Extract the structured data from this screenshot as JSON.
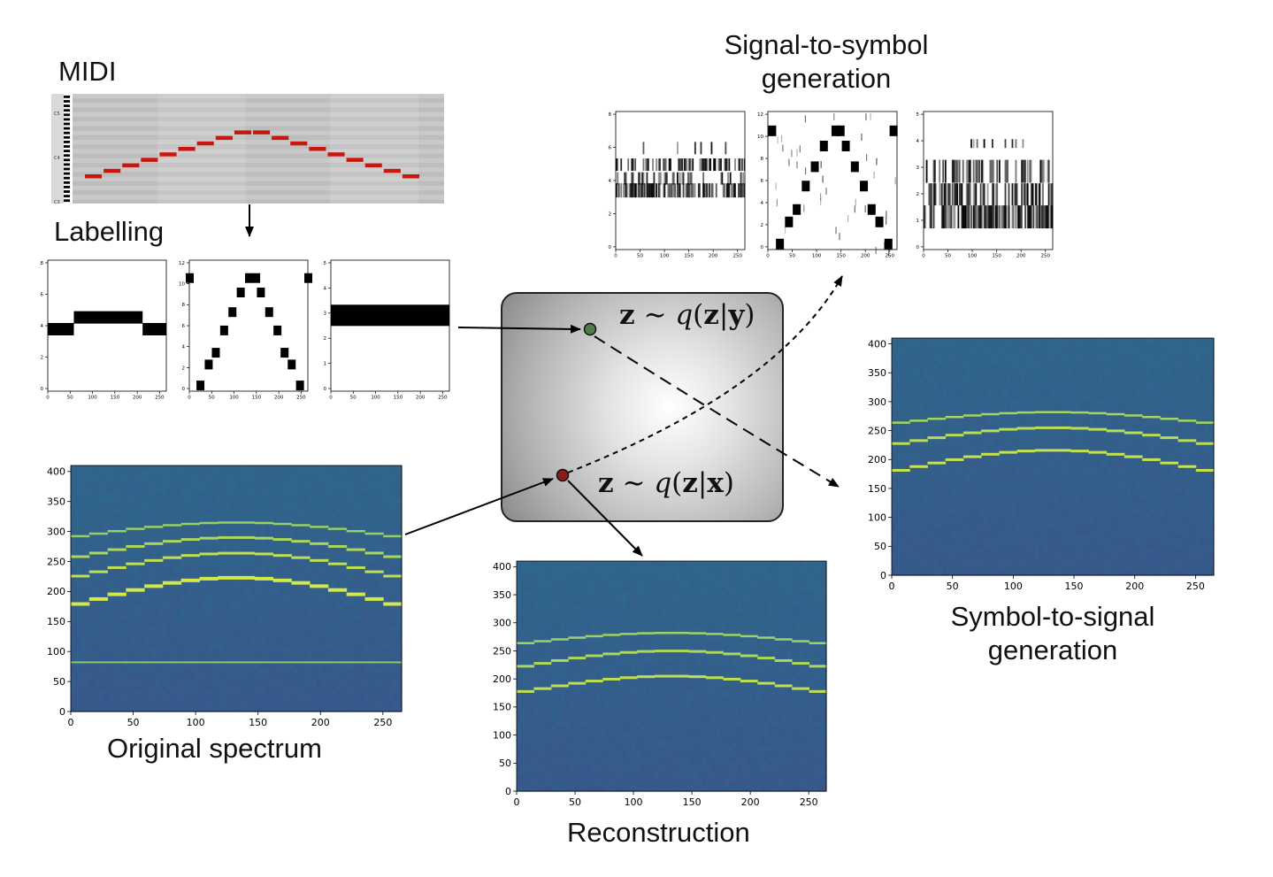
{
  "labels": {
    "midi": "MIDI",
    "labelling": "Labelling",
    "signal_to_symbol_line1": "Signal-to-symbol",
    "signal_to_symbol_line2": "generation",
    "original": "Original spectrum",
    "reconstruction": "Reconstruction",
    "symbol_to_signal_line1": "Symbol-to-signal",
    "symbol_to_signal_line2": "generation"
  },
  "latent": {
    "formula_y": {
      "z1": "z",
      "op": "∼",
      "q": "q",
      "open": "(",
      "z2": "z",
      "bar": "|",
      "v": "y",
      "close": ")"
    },
    "formula_x": {
      "z1": "z",
      "op": "∼",
      "q": "q",
      "open": "(",
      "z2": "z",
      "bar": "|",
      "v": "x",
      "close": ")"
    },
    "colors": {
      "symbol_point": "#4f7d46",
      "signal_point": "#8b1a1a"
    }
  },
  "midi_roll": {
    "note_color": "#c8170f",
    "key_labels": [
      "C5",
      "C4",
      "C3"
    ],
    "note_levels": [
      0,
      1,
      2,
      3,
      4,
      5,
      6,
      7,
      8,
      8,
      7,
      6,
      5,
      4,
      3,
      2,
      1,
      0
    ]
  },
  "spectro_axes": {
    "x_ticks": [
      "0",
      "50",
      "100",
      "150",
      "200",
      "250"
    ],
    "y_ticks": [
      "0",
      "50",
      "100",
      "150",
      "200",
      "250",
      "300",
      "350",
      "400"
    ]
  },
  "label_plots": {
    "x_ticks": [
      "0",
      "50",
      "100",
      "150",
      "200",
      "250"
    ],
    "plot1_y_ticks": [
      "0",
      "2",
      "4",
      "6",
      "8"
    ],
    "plot2_y_ticks": [
      "0",
      "2",
      "4",
      "6",
      "8",
      "10",
      "12"
    ],
    "plot3_y_ticks": [
      "0",
      "1",
      "2",
      "3",
      "4",
      "5"
    ]
  },
  "gen_plots": {
    "x_ticks": [
      "0",
      "50",
      "100",
      "150",
      "200",
      "250"
    ],
    "plot1_y_ticks": [
      "0",
      "2",
      "4",
      "6",
      "8"
    ],
    "plot2_y_ticks": [
      "0",
      "2",
      "4",
      "6",
      "8",
      "10",
      "12"
    ],
    "plot3_y_ticks": [
      "0",
      "1",
      "2",
      "3",
      "4",
      "5"
    ]
  },
  "colors": {
    "spectro_low": "#3a4f8a",
    "spectro_high": "#d4e84a",
    "arrow": "#000000"
  }
}
